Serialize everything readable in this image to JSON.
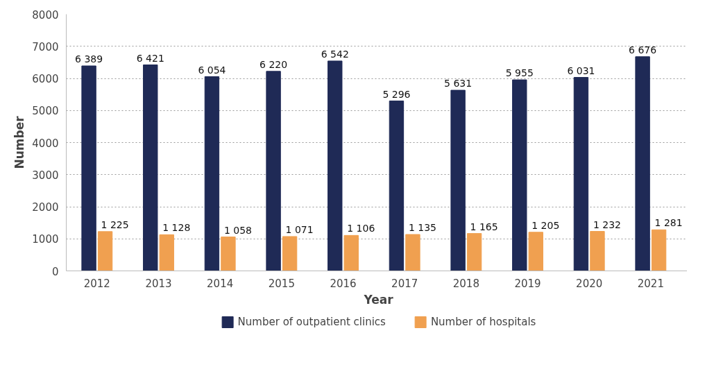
{
  "chart_data": {
    "type": "bar",
    "xlabel": "Year",
    "ylabel": "Number",
    "categories": [
      "2012",
      "2013",
      "2014",
      "2015",
      "2016",
      "2017",
      "2018",
      "2019",
      "2020",
      "2021"
    ],
    "series": [
      {
        "name": "Number of outpatient clinics",
        "color": "#1f2a56",
        "values": [
          6389,
          6421,
          6054,
          6220,
          6542,
          5296,
          5631,
          5955,
          6031,
          6676
        ],
        "value_labels": [
          "6 389",
          "6 421",
          "6 054",
          "6 220",
          "6 542",
          "5 296",
          "5 631",
          "5 955",
          "6 031",
          "6 676"
        ]
      },
      {
        "name": "Number of hospitals",
        "color": "#f0a050",
        "values": [
          1225,
          1128,
          1058,
          1071,
          1106,
          1135,
          1165,
          1205,
          1232,
          1281
        ],
        "value_labels": [
          "1 225",
          "1 128",
          "1 058",
          "1 071",
          "1 106",
          "1 135",
          "1 165",
          "1 205",
          "1 232",
          "1 281"
        ]
      }
    ],
    "ylim": [
      0,
      8000
    ],
    "yticks": [
      0,
      1000,
      2000,
      3000,
      4000,
      5000,
      6000,
      7000,
      8000
    ],
    "grid": "y",
    "legend": "bottom"
  }
}
